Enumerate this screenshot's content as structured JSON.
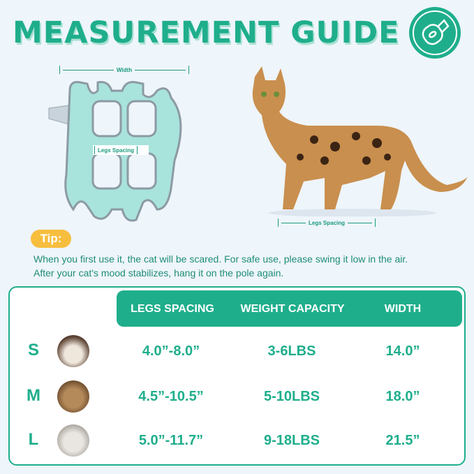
{
  "title": "MEASUREMENT GUIDE",
  "badge_icon": "measuring-tape-icon",
  "diagram": {
    "width_label": "Width",
    "vest_legs_label": "Legs Spacing",
    "cat_legs_label": "Legs Spacing"
  },
  "tip": {
    "label": "Tip:",
    "text": "When you first use it, the cat will be scared. For safe use, please swing it low in the air. After your cat's mood stabilizes, hang it on the pole again."
  },
  "table": {
    "headers": [
      "LEGS SPACING",
      "WEIGHT CAPACITY",
      "WIDTH"
    ],
    "rows": [
      {
        "size": "S",
        "legs": "4.0”-8.0”",
        "weight": "3-6LBS",
        "width": "14.0”"
      },
      {
        "size": "M",
        "legs": "4.5”-10.5”",
        "weight": "5-10LBS",
        "width": "18.0”"
      },
      {
        "size": "L",
        "legs": "5.0”-11.7”",
        "weight": "9-18LBS",
        "width": "21.5”"
      }
    ]
  },
  "colors": {
    "accent": "#1fae8c",
    "tip": "#f7be3e",
    "background": "#eef5fb"
  }
}
